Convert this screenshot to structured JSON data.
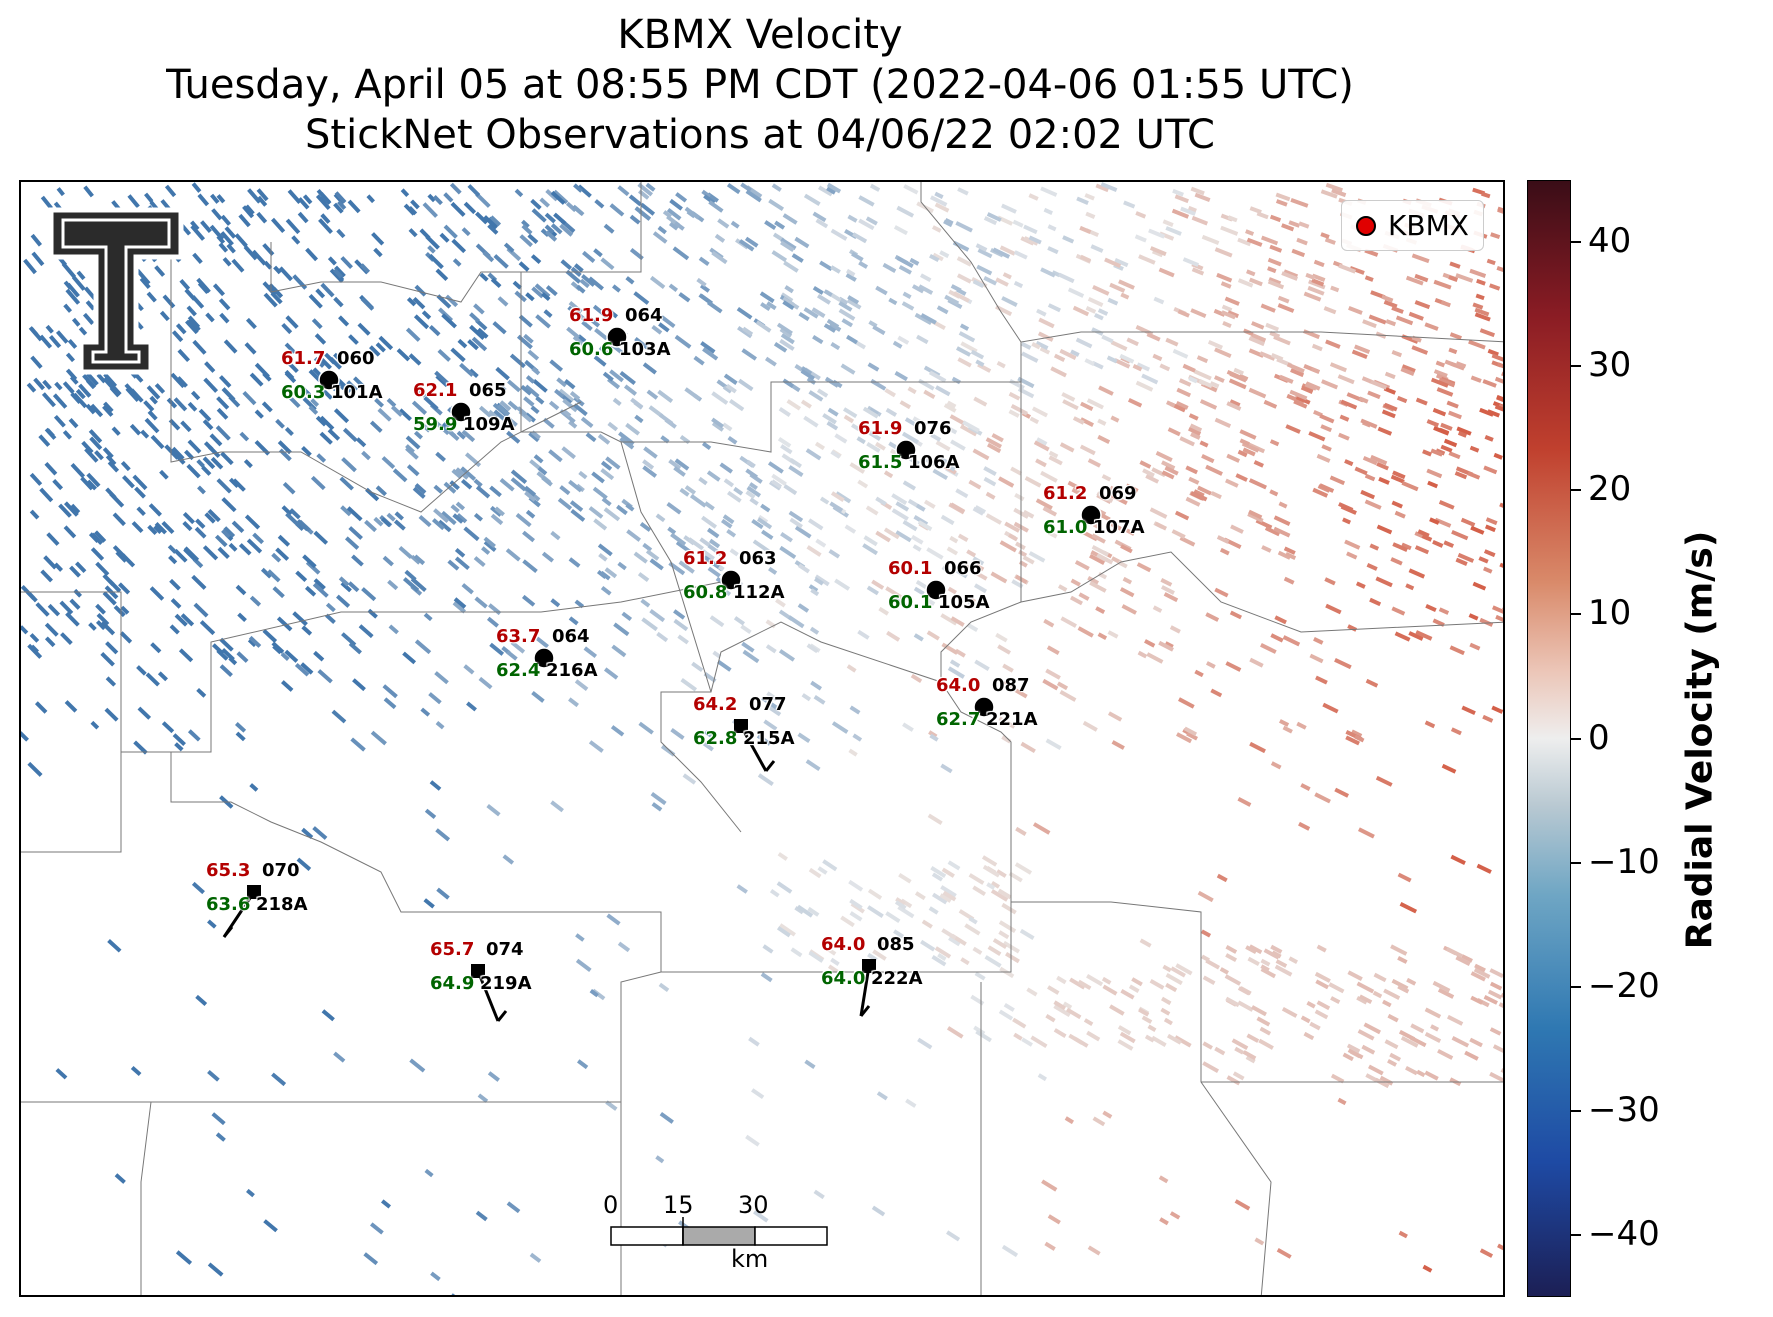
{
  "title": {
    "line1": "KBMX Velocity",
    "line2": "Tuesday, April 05 at 08:55 PM CDT (2022-04-06 01:55 UTC)",
    "line3": "StickNet Observations at 04/06/22 02:02 UTC"
  },
  "legend": {
    "label": "KBMX",
    "color": "#e00000"
  },
  "colorbar": {
    "title": "Radial Velocity (m/s)",
    "ticks": [
      "40",
      "30",
      "20",
      "10",
      "0",
      "−10",
      "−20",
      "−30",
      "−40"
    ]
  },
  "scalebar": {
    "labels": [
      "0",
      "15",
      "30"
    ],
    "unit": "km"
  },
  "stations": [
    {
      "id": "101A",
      "temp": "61.7",
      "dew": "60.3",
      "wind_dir": "060",
      "marker": "circle"
    },
    {
      "id": "109A",
      "temp": "62.1",
      "dew": "59.9",
      "wind_dir": "065",
      "marker": "circle"
    },
    {
      "id": "103A",
      "temp": "61.9",
      "dew": "60.6",
      "wind_dir": "064",
      "marker": "circle"
    },
    {
      "id": "106A",
      "temp": "61.9",
      "dew": "61.5",
      "wind_dir": "076",
      "marker": "circle"
    },
    {
      "id": "107A",
      "temp": "61.2",
      "dew": "61.0",
      "wind_dir": "069",
      "marker": "circle"
    },
    {
      "id": "112A",
      "temp": "61.2",
      "dew": "60.8",
      "wind_dir": "063",
      "marker": "circle"
    },
    {
      "id": "105A",
      "temp": "60.1",
      "dew": "60.1",
      "wind_dir": "066",
      "marker": "circle"
    },
    {
      "id": "216A",
      "temp": "63.7",
      "dew": "62.4",
      "wind_dir": "064",
      "marker": "circle"
    },
    {
      "id": "221A",
      "temp": "64.0",
      "dew": "62.7",
      "wind_dir": "087",
      "marker": "circle"
    },
    {
      "id": "215A",
      "temp": "64.2",
      "dew": "62.8",
      "wind_dir": "077",
      "marker": "square"
    },
    {
      "id": "218A",
      "temp": "65.3",
      "dew": "63.6",
      "wind_dir": "070",
      "marker": "square"
    },
    {
      "id": "219A",
      "temp": "65.7",
      "dew": "64.9",
      "wind_dir": "074",
      "marker": "square"
    },
    {
      "id": "222A",
      "temp": "64.0",
      "dew": "64.0",
      "wind_dir": "085",
      "marker": "square"
    }
  ]
}
